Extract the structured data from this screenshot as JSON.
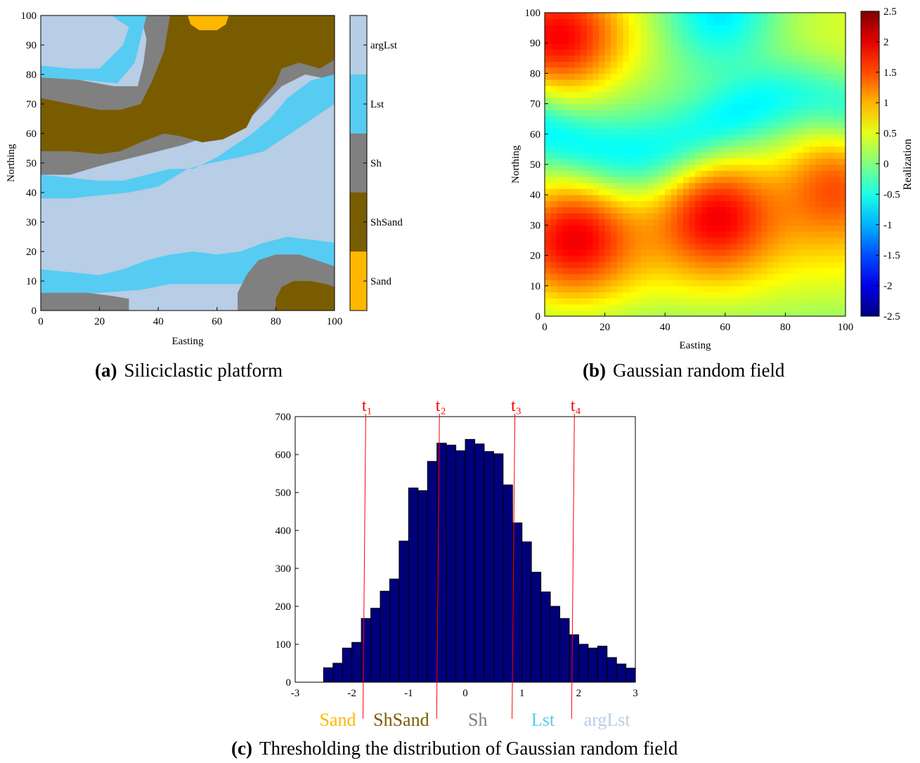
{
  "panels": {
    "a": {
      "letter": "(a)",
      "caption": "Siliciclastic platform",
      "xlabel": "Easting",
      "ylabel": "Northing",
      "xticks": [
        0,
        20,
        40,
        60,
        80,
        100
      ],
      "yticks": [
        0,
        10,
        20,
        30,
        40,
        50,
        60,
        70,
        80,
        90,
        100
      ],
      "facies": [
        {
          "name": "argLst",
          "color": "#b8cde6"
        },
        {
          "name": "Lst",
          "color": "#56ccf2"
        },
        {
          "name": "Sh",
          "color": "#808080"
        },
        {
          "name": "ShSand",
          "color": "#7a5c00"
        },
        {
          "name": "Sand",
          "color": "#ffb800"
        }
      ]
    },
    "b": {
      "letter": "(b)",
      "caption": "Gaussian random field",
      "xlabel": "Easting",
      "ylabel": "Northing",
      "colorbar_label": "Realization",
      "xticks": [
        0,
        20,
        40,
        60,
        80,
        100
      ],
      "yticks": [
        0,
        10,
        20,
        30,
        40,
        50,
        60,
        70,
        80,
        90,
        100
      ],
      "cbar_ticks": [
        "2.5",
        "2",
        "1.5",
        "1",
        "0.5",
        "0",
        "-0.5",
        "-1",
        "-1.5",
        "-2",
        "-2.5"
      ],
      "cbar_range": [
        -2.5,
        2.5
      ]
    },
    "c": {
      "letter": "(c)",
      "caption": "Thresholding the distribution of Gaussian random field"
    }
  },
  "chart_data": [
    {
      "type": "heatmap",
      "title": "Siliciclastic platform",
      "xlabel": "Easting",
      "ylabel": "Northing",
      "xlim": [
        0,
        100
      ],
      "ylim": [
        0,
        100
      ],
      "categories": [
        "argLst",
        "Lst",
        "Sh",
        "ShSand",
        "Sand"
      ],
      "legend": "right"
    },
    {
      "type": "heatmap",
      "title": "Gaussian random field",
      "xlabel": "Easting",
      "ylabel": "Northing",
      "xlim": [
        0,
        100
      ],
      "ylim": [
        0,
        100
      ],
      "colorbar": {
        "label": "Realization",
        "range": [
          -2.5,
          2.5
        ]
      },
      "hotspots": [
        {
          "x": 5,
          "y": 92,
          "value": 1.6
        },
        {
          "x": 10,
          "y": 27,
          "value": 1.7
        },
        {
          "x": 57,
          "y": 35,
          "value": 1.8
        },
        {
          "x": 97,
          "y": 45,
          "value": 1.6
        },
        {
          "x": 58,
          "y": 100,
          "value": -1.0
        }
      ]
    },
    {
      "type": "bar",
      "title": "Thresholding the distribution of Gaussian random field",
      "xlim": [
        -3,
        3
      ],
      "ylim": [
        0,
        700
      ],
      "xticks": [
        "-3",
        "-2",
        "-1",
        "0",
        "1",
        "2",
        "3"
      ],
      "yticks": [
        "0",
        "100",
        "200",
        "300",
        "400",
        "500",
        "600",
        "700"
      ],
      "bin_start": -2.5,
      "bin_width": 0.1667,
      "values": [
        38,
        50,
        90,
        105,
        168,
        195,
        240,
        272,
        372,
        512,
        505,
        582,
        630,
        625,
        610,
        640,
        628,
        608,
        602,
        520,
        420,
        370,
        290,
        238,
        200,
        168,
        125,
        100,
        90,
        95,
        65,
        48,
        37
      ],
      "bar_color": "#00007a",
      "thresholds": [
        {
          "label": "t₁",
          "value": -1.78
        },
        {
          "label": "t₂",
          "value": -0.48
        },
        {
          "label": "t₃",
          "value": 0.85
        },
        {
          "label": "t₄",
          "value": 1.9
        }
      ],
      "threshold_color": "#ff0000",
      "class_labels": [
        {
          "name": "Sand",
          "color": "#ffb800",
          "center": -2.25
        },
        {
          "name": "ShSand",
          "color": "#7a5c00",
          "center": -1.13
        },
        {
          "name": "Sh",
          "color": "#808080",
          "center": 0.22
        },
        {
          "name": "Lst",
          "color": "#56ccf2",
          "center": 1.37
        },
        {
          "name": "argLst",
          "color": "#b8cde6",
          "center": 2.5
        }
      ]
    }
  ]
}
